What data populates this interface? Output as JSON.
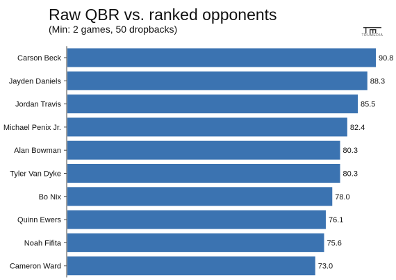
{
  "title": "Raw QBR vs. ranked opponents",
  "subtitle": "(Min: 2 games, 50 dropbacks)",
  "logo": {
    "text": "TRUMEDIA",
    "icon": "trumedia-logo-icon"
  },
  "colors": {
    "bar": "#3b73b1",
    "axis": "#444444"
  },
  "chart_data": {
    "type": "bar",
    "orientation": "horizontal",
    "title": "Raw QBR vs. ranked opponents",
    "subtitle": "(Min: 2 games, 50 dropbacks)",
    "categories": [
      "Carson Beck",
      "Jayden Daniels",
      "Jordan Travis",
      "Michael Penix Jr.",
      "Alan Bowman",
      "Tyler Van Dyke",
      "Bo Nix",
      "Quinn Ewers",
      "Noah Fifita",
      "Cameron Ward"
    ],
    "values": [
      90.8,
      88.3,
      85.5,
      82.4,
      80.3,
      80.3,
      78.0,
      76.1,
      75.6,
      73.0
    ],
    "value_labels": [
      "90.8",
      "88.3",
      "85.5",
      "82.4",
      "80.3",
      "80.3",
      "78.0",
      "76.1",
      "75.6",
      "73.0"
    ],
    "xlim": [
      0,
      90.8
    ],
    "grid": false,
    "legend": "none"
  }
}
